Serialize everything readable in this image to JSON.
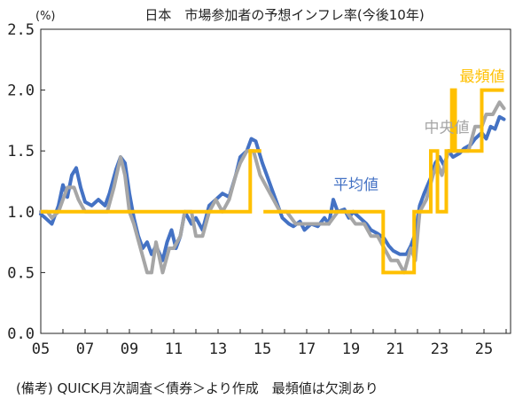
{
  "chart_data": {
    "type": "line",
    "title": "日本　市場参加者の予想インフレ率(今後10年)",
    "unit_label": "(%)",
    "note": "(備考) QUICK月次調査＜債券＞より作成　最頻値は欠測あり",
    "ylim": [
      0.0,
      2.5
    ],
    "yticks": [
      "0.0",
      "0.5",
      "1.0",
      "1.5",
      "2.0",
      "2.5"
    ],
    "xlim": [
      2005,
      2026.2
    ],
    "xticks": [
      "05",
      "07",
      "09",
      "11",
      "13",
      "15",
      "17",
      "19",
      "21",
      "23",
      "25"
    ],
    "grid": false,
    "series": [
      {
        "name": "平均値",
        "color": "#4472C4",
        "points": [
          [
            2005.0,
            0.98
          ],
          [
            2005.2,
            0.95
          ],
          [
            2005.5,
            0.9
          ],
          [
            2005.8,
            1.05
          ],
          [
            2006.0,
            1.22
          ],
          [
            2006.2,
            1.12
          ],
          [
            2006.4,
            1.3
          ],
          [
            2006.6,
            1.36
          ],
          [
            2006.8,
            1.2
          ],
          [
            2007.0,
            1.08
          ],
          [
            2007.3,
            1.05
          ],
          [
            2007.6,
            1.1
          ],
          [
            2007.9,
            1.05
          ],
          [
            2008.1,
            1.15
          ],
          [
            2008.4,
            1.35
          ],
          [
            2008.6,
            1.45
          ],
          [
            2008.8,
            1.4
          ],
          [
            2009.0,
            1.15
          ],
          [
            2009.2,
            0.95
          ],
          [
            2009.4,
            0.8
          ],
          [
            2009.6,
            0.7
          ],
          [
            2009.8,
            0.75
          ],
          [
            2010.0,
            0.65
          ],
          [
            2010.2,
            0.72
          ],
          [
            2010.5,
            0.6
          ],
          [
            2010.7,
            0.75
          ],
          [
            2010.9,
            0.85
          ],
          [
            2011.1,
            0.7
          ],
          [
            2011.3,
            0.8
          ],
          [
            2011.5,
            1.0
          ],
          [
            2011.8,
            0.9
          ],
          [
            2012.0,
            0.95
          ],
          [
            2012.3,
            0.85
          ],
          [
            2012.6,
            1.05
          ],
          [
            2012.9,
            1.1
          ],
          [
            2013.2,
            1.15
          ],
          [
            2013.5,
            1.12
          ],
          [
            2013.8,
            1.3
          ],
          [
            2014.0,
            1.45
          ],
          [
            2014.3,
            1.5
          ],
          [
            2014.5,
            1.6
          ],
          [
            2014.7,
            1.58
          ],
          [
            2015.0,
            1.4
          ],
          [
            2015.2,
            1.3
          ],
          [
            2015.4,
            1.2
          ],
          [
            2015.6,
            1.1
          ],
          [
            2015.9,
            0.95
          ],
          [
            2016.2,
            0.9
          ],
          [
            2016.4,
            0.88
          ],
          [
            2016.7,
            0.92
          ],
          [
            2016.9,
            0.85
          ],
          [
            2017.2,
            0.9
          ],
          [
            2017.5,
            0.88
          ],
          [
            2017.8,
            0.95
          ],
          [
            2018.0,
            0.9
          ],
          [
            2018.2,
            1.1
          ],
          [
            2018.4,
            1.0
          ],
          [
            2018.7,
            1.02
          ],
          [
            2018.9,
            0.95
          ],
          [
            2019.1,
            1.0
          ],
          [
            2019.4,
            0.95
          ],
          [
            2019.7,
            0.9
          ],
          [
            2019.9,
            0.85
          ],
          [
            2020.2,
            0.82
          ],
          [
            2020.5,
            0.78
          ],
          [
            2020.7,
            0.72
          ],
          [
            2020.9,
            0.68
          ],
          [
            2021.2,
            0.65
          ],
          [
            2021.5,
            0.65
          ],
          [
            2021.7,
            0.72
          ],
          [
            2021.9,
            0.82
          ],
          [
            2022.1,
            1.05
          ],
          [
            2022.3,
            1.15
          ],
          [
            2022.6,
            1.28
          ],
          [
            2022.8,
            1.4
          ],
          [
            2023.0,
            1.45
          ],
          [
            2023.2,
            1.38
          ],
          [
            2023.4,
            1.5
          ],
          [
            2023.6,
            1.45
          ],
          [
            2023.9,
            1.48
          ],
          [
            2024.1,
            1.52
          ],
          [
            2024.4,
            1.55
          ],
          [
            2024.6,
            1.6
          ],
          [
            2024.9,
            1.65
          ],
          [
            2025.1,
            1.6
          ],
          [
            2025.3,
            1.7
          ],
          [
            2025.5,
            1.68
          ],
          [
            2025.7,
            1.78
          ],
          [
            2025.9,
            1.76
          ]
        ]
      },
      {
        "name": "中央値",
        "color": "#A6A6A6",
        "points": [
          [
            2005.0,
            1.0
          ],
          [
            2005.3,
            1.0
          ],
          [
            2005.5,
            0.95
          ],
          [
            2005.8,
            1.0
          ],
          [
            2006.0,
            1.1
          ],
          [
            2006.2,
            1.2
          ],
          [
            2006.5,
            1.2
          ],
          [
            2006.7,
            1.1
          ],
          [
            2007.0,
            1.0
          ],
          [
            2007.4,
            1.0
          ],
          [
            2007.8,
            1.0
          ],
          [
            2008.0,
            1.0
          ],
          [
            2008.3,
            1.2
          ],
          [
            2008.6,
            1.45
          ],
          [
            2008.8,
            1.3
          ],
          [
            2009.0,
            1.0
          ],
          [
            2009.2,
            0.9
          ],
          [
            2009.5,
            0.7
          ],
          [
            2009.8,
            0.5
          ],
          [
            2010.0,
            0.5
          ],
          [
            2010.2,
            0.75
          ],
          [
            2010.5,
            0.5
          ],
          [
            2010.8,
            0.7
          ],
          [
            2011.0,
            0.7
          ],
          [
            2011.3,
            0.8
          ],
          [
            2011.5,
            1.0
          ],
          [
            2011.8,
            1.0
          ],
          [
            2012.0,
            0.8
          ],
          [
            2012.3,
            0.8
          ],
          [
            2012.6,
            1.0
          ],
          [
            2012.9,
            1.1
          ],
          [
            2013.2,
            1.0
          ],
          [
            2013.5,
            1.1
          ],
          [
            2013.8,
            1.3
          ],
          [
            2014.0,
            1.4
          ],
          [
            2014.3,
            1.5
          ],
          [
            2014.6,
            1.5
          ],
          [
            2014.9,
            1.3
          ],
          [
            2015.2,
            1.2
          ],
          [
            2015.5,
            1.1
          ],
          [
            2015.8,
            1.0
          ],
          [
            2016.1,
            1.0
          ],
          [
            2016.5,
            0.9
          ],
          [
            2016.8,
            0.9
          ],
          [
            2017.2,
            0.9
          ],
          [
            2017.6,
            0.9
          ],
          [
            2018.0,
            0.9
          ],
          [
            2018.4,
            1.0
          ],
          [
            2018.8,
            1.0
          ],
          [
            2019.2,
            0.9
          ],
          [
            2019.6,
            0.9
          ],
          [
            2019.9,
            0.8
          ],
          [
            2020.2,
            0.8
          ],
          [
            2020.5,
            0.7
          ],
          [
            2020.8,
            0.6
          ],
          [
            2021.1,
            0.6
          ],
          [
            2021.4,
            0.5
          ],
          [
            2021.7,
            0.7
          ],
          [
            2021.9,
            0.6
          ],
          [
            2022.1,
            1.0
          ],
          [
            2022.4,
            1.1
          ],
          [
            2022.7,
            1.3
          ],
          [
            2022.9,
            1.4
          ],
          [
            2023.1,
            1.3
          ],
          [
            2023.4,
            1.5
          ],
          [
            2023.7,
            1.5
          ],
          [
            2024.0,
            1.5
          ],
          [
            2024.3,
            1.5
          ],
          [
            2024.6,
            1.7
          ],
          [
            2024.9,
            1.7
          ],
          [
            2025.1,
            1.8
          ],
          [
            2025.4,
            1.8
          ],
          [
            2025.7,
            1.9
          ],
          [
            2025.9,
            1.85
          ]
        ]
      },
      {
        "name": "最頻値",
        "color": "#FFC000",
        "segments": [
          [
            [
              2005.0,
              1.0
            ],
            [
              2009.4,
              1.0
            ],
            [
              2009.4,
              1.0
            ],
            [
              2014.45,
              1.0
            ],
            [
              2014.45,
              1.5
            ],
            [
              2014.95,
              1.5
            ]
          ],
          [
            [
              2015.05,
              1.0
            ],
            [
              2020.45,
              1.0
            ],
            [
              2020.45,
              0.5
            ],
            [
              2021.85,
              0.5
            ],
            [
              2021.85,
              1.0
            ],
            [
              2022.6,
              1.0
            ],
            [
              2022.6,
              1.5
            ],
            [
              2022.9,
              1.5
            ],
            [
              2022.9,
              1.0
            ],
            [
              2023.3,
              1.0
            ],
            [
              2023.3,
              1.5
            ],
            [
              2023.55,
              1.5
            ],
            [
              2023.55,
              2.0
            ],
            [
              2023.7,
              2.0
            ],
            [
              2023.7,
              1.5
            ],
            [
              2024.9,
              1.5
            ],
            [
              2024.9,
              2.0
            ],
            [
              2025.9,
              2.0
            ]
          ]
        ]
      }
    ]
  }
}
